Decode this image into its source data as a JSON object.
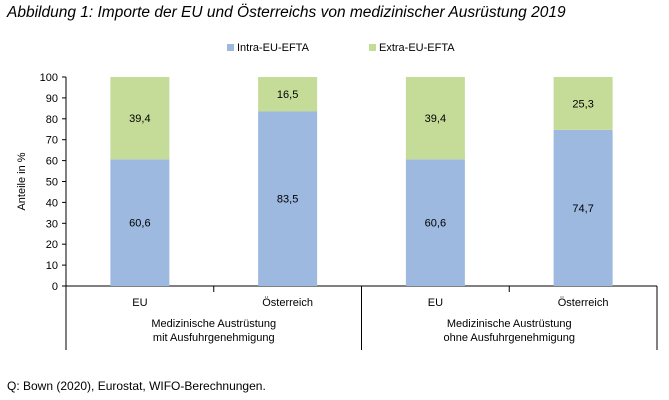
{
  "title": "Abbildung 1: Importe der EU und Österreichs von medizinischer Ausrüstung 2019",
  "source": "Q: Bown (2020), Eurostat, WIFO-Berechnungen.",
  "chart_data": {
    "type": "bar",
    "stacked": true,
    "ylabel": "Anteile in %",
    "ylim": [
      0,
      100
    ],
    "yticks": [
      0,
      10,
      20,
      30,
      40,
      50,
      60,
      70,
      80,
      90,
      100
    ],
    "grid": false,
    "legend_position": "top",
    "categories": [
      "EU",
      "Österreich",
      "EU",
      "Österreich"
    ],
    "groups": [
      {
        "label_lines": [
          "Medizinische Austrüstung",
          "mit Ausfuhrgenehmigung"
        ],
        "categories": [
          0,
          1
        ]
      },
      {
        "label_lines": [
          "Medizinische Austrüstung",
          "ohne Ausfuhrgenehmigung"
        ],
        "categories": [
          2,
          3
        ]
      }
    ],
    "series": [
      {
        "name": "Intra-EU-EFTA",
        "color": "#9db9e0",
        "values": [
          60.6,
          83.5,
          60.6,
          74.7
        ],
        "labels": [
          "60,6",
          "83,5",
          "60,6",
          "74,7"
        ]
      },
      {
        "name": "Extra-EU-EFTA",
        "color": "#c5dc98",
        "values": [
          39.4,
          16.5,
          39.4,
          25.3
        ],
        "labels": [
          "39,4",
          "16,5",
          "39,4",
          "25,3"
        ]
      }
    ]
  }
}
